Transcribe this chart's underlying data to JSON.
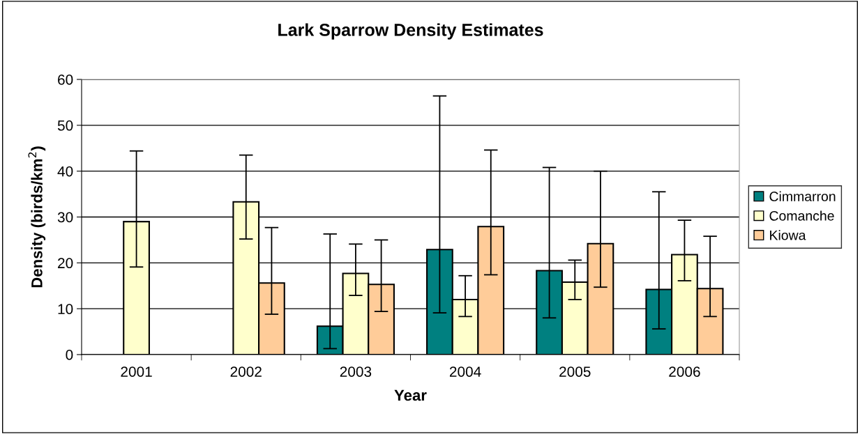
{
  "chart_data": {
    "type": "bar",
    "title": "Lark Sparrow Density Estimates",
    "xlabel": "Year",
    "ylabel": "Density (birds/km$^{2}$)",
    "categories": [
      "2001",
      "2002",
      "2003",
      "2004",
      "2005",
      "2006"
    ],
    "series": [
      {
        "name": "Cimmarron",
        "color": "#008080",
        "values": [
          null,
          null,
          6.2,
          22.9,
          18.3,
          14.2
        ],
        "errors": [
          null,
          null,
          [
            1.3,
            26.3
          ],
          [
            9.1,
            56.4
          ],
          [
            8.0,
            40.8
          ],
          [
            5.6,
            35.5
          ]
        ]
      },
      {
        "name": "Comanche",
        "color": "#ffffcc",
        "values": [
          29.0,
          33.3,
          17.7,
          12.0,
          15.8,
          21.8
        ],
        "errors": [
          [
            19.1,
            44.4
          ],
          [
            25.2,
            43.5
          ],
          [
            12.9,
            24.1
          ],
          [
            8.3,
            17.2
          ],
          [
            12.0,
            20.6
          ],
          [
            16.1,
            29.3
          ]
        ]
      },
      {
        "name": "Kiowa",
        "color": "#ffcc99",
        "values": [
          null,
          15.6,
          15.3,
          27.9,
          24.2,
          14.4
        ],
        "errors": [
          null,
          [
            8.8,
            27.7
          ],
          [
            9.4,
            25.0
          ],
          [
            17.4,
            44.6
          ],
          [
            14.7,
            40.0
          ],
          [
            8.3,
            25.8
          ]
        ]
      }
    ],
    "ylim": [
      0,
      60
    ],
    "yticks": [
      0,
      10,
      20,
      30,
      40,
      50,
      60
    ],
    "grid": "y",
    "legend": "right"
  }
}
